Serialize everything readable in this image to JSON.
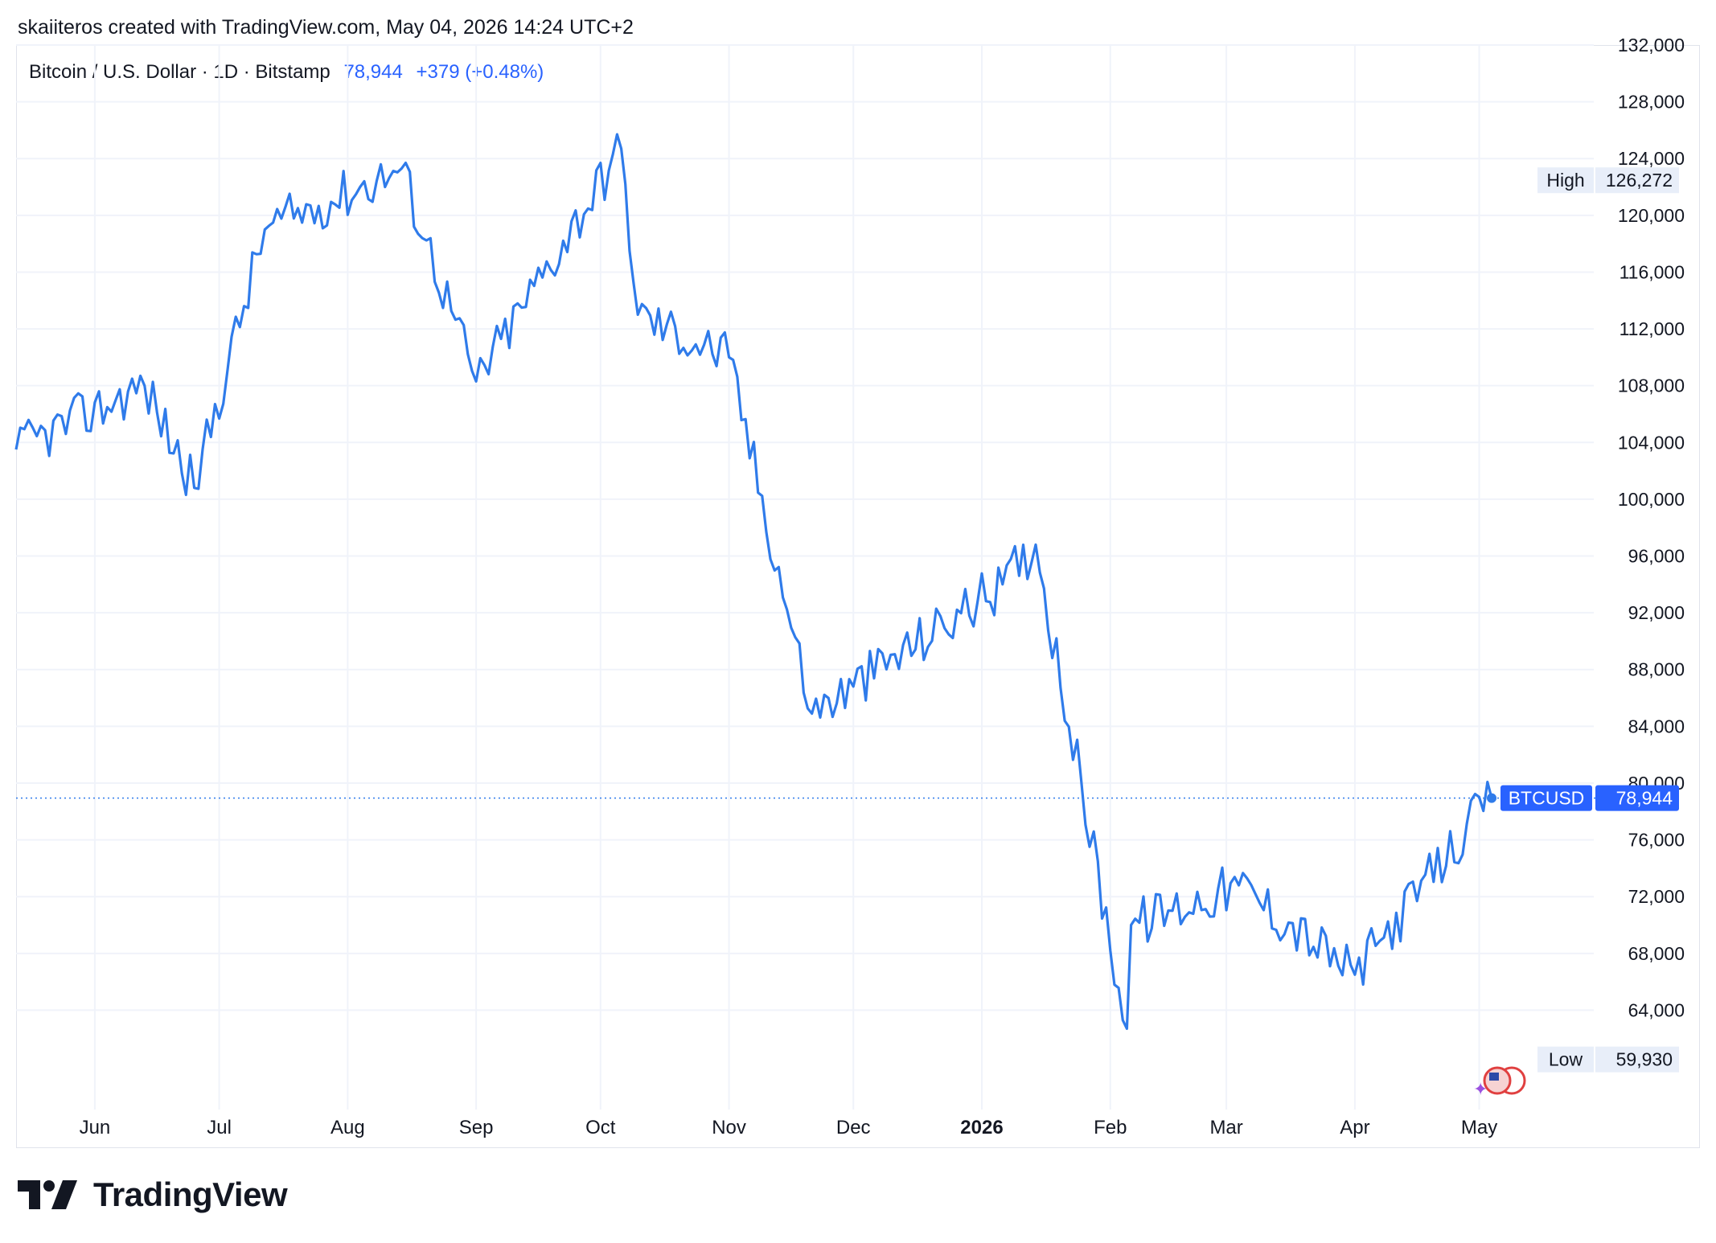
{
  "credit": "skaiiteros created with TradingView.com, May 04, 2026 14:24 UTC+2",
  "legend": {
    "symbol": "Bitcoin / U.S. Dollar · 1D · Bitstamp",
    "price": "78,944",
    "change": "+379 (+0.48%)"
  },
  "brand": {
    "name": "TradingView",
    "logo_icon": "tradingview-logo-icon"
  },
  "colors": {
    "line": "#2f7bea",
    "accent": "#2962ff",
    "grid": "#f0f3fa",
    "text": "#131722",
    "badge": "#2962ff"
  },
  "chart_data": {
    "type": "line",
    "series": [
      {
        "name": "BTCUSD",
        "x": [
          "2025-05-13",
          "2025-06-13",
          "2025-06-25",
          "2025-07-12",
          "2025-08-14",
          "2025-09-01",
          "2025-10-06",
          "2025-10-10",
          "2025-11-01",
          "2025-11-21",
          "2025-12-01",
          "2026-01-06",
          "2026-01-14",
          "2026-02-05",
          "2026-02-06",
          "2026-03-04",
          "2026-04-01",
          "2026-05-04"
        ],
        "y": [
          103500,
          108000,
          100800,
          119000,
          123300,
          108300,
          124700,
          113000,
          110000,
          84900,
          86800,
          94000,
          96800,
          62700,
          70000,
          72800,
          66500,
          78944
        ]
      }
    ],
    "x_ticks": [
      "Jun",
      "Jul",
      "Aug",
      "Sep",
      "Oct",
      "Nov",
      "Dec",
      "2026",
      "Feb",
      "Mar",
      "Apr",
      "May"
    ],
    "y_ticks": [
      "64,000",
      "68,000",
      "72,000",
      "76,000",
      "80,000",
      "84,000",
      "88,000",
      "92,000",
      "96,000",
      "100,000",
      "104,000",
      "108,000",
      "112,000",
      "116,000",
      "120,000",
      "124,000",
      "128,000",
      "132,000"
    ],
    "ylim": [
      57000,
      132000
    ],
    "high": {
      "label": "High",
      "value": "126,272"
    },
    "low": {
      "label": "Low",
      "value": "59,930"
    },
    "last": {
      "label": "BTCUSD",
      "value": "78,944",
      "y": 78944
    },
    "grid": true
  }
}
